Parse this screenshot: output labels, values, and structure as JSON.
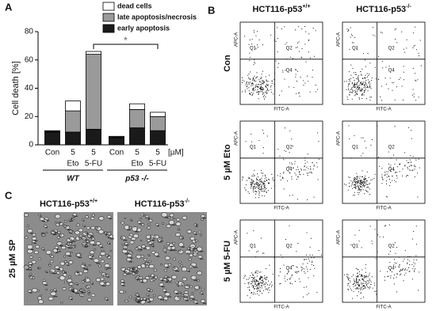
{
  "panel_labels": [
    "A",
    "B",
    "C"
  ],
  "chart_data": {
    "type": "bar",
    "stacked": true,
    "ylabel": "Cell death [%]",
    "categories": [
      "Con",
      "Eto",
      "5-FU",
      "Con",
      "Eto",
      "5-FU"
    ],
    "doses": [
      null,
      "5",
      "5",
      null,
      "5",
      "5"
    ],
    "unit_label": "[µM]",
    "groups": [
      "WT",
      "p53 -/-"
    ],
    "series": [
      {
        "name": "early apoptosis",
        "color": "#1a1a1a",
        "values": [
          9,
          9,
          11,
          5,
          12,
          10
        ]
      },
      {
        "name": "late apoptosis/necrosis",
        "color": "#9a9a9a",
        "values": [
          0.5,
          15,
          53,
          0.5,
          13,
          10
        ]
      },
      {
        "name": "dead cells",
        "color": "#ffffff",
        "values": [
          0.5,
          7,
          2,
          0.5,
          4,
          3
        ]
      }
    ],
    "ylim": [
      0,
      80
    ],
    "yticks": [
      0,
      20,
      40,
      60,
      80
    ],
    "annotation": "*"
  },
  "flow_cytometry": {
    "columns": [
      {
        "name": "HCT116-p53",
        "sup": "+/+"
      },
      {
        "name": "HCT116-p53",
        "sup": "-/-"
      }
    ],
    "rows": [
      "Con",
      "5 µM Eto",
      "5 µM 5-FU"
    ],
    "quadrants": [
      "Q1",
      "Q2",
      "Q4"
    ],
    "x_axis": "FITC-A",
    "y_axis": "APC-A"
  },
  "micrographs": {
    "columns": [
      {
        "name": "HCT116-p53",
        "sup": "+/+"
      },
      {
        "name": "HCT116-p53",
        "sup": "-/-"
      }
    ],
    "row": "25 µM SP"
  }
}
